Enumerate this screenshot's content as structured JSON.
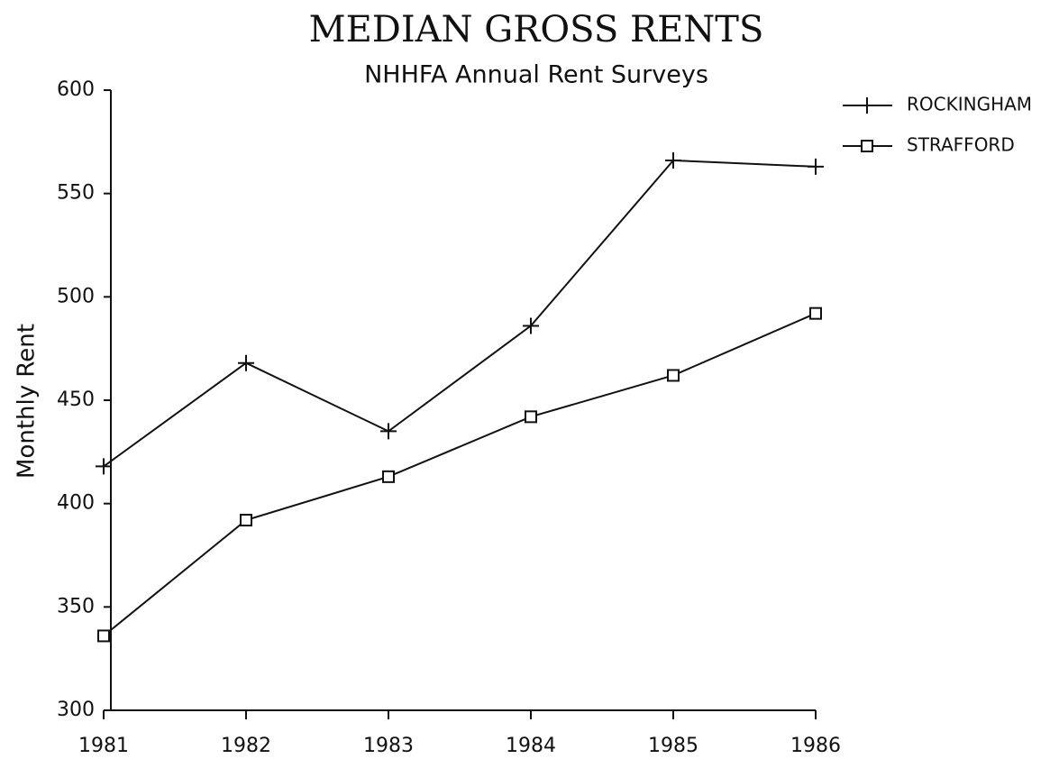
{
  "chart_data": {
    "type": "line",
    "title": "MEDIAN GROSS RENTS",
    "subtitle": "NHHFA Annual Rent Surveys",
    "ylabel": "Monthly Rent",
    "categories": [
      "1981",
      "1982",
      "1983",
      "1984",
      "1985",
      "1986"
    ],
    "series": [
      {
        "name": "ROCKINGHAM",
        "color": "#111111",
        "marker": "plus",
        "values": [
          418,
          468,
          435,
          486,
          566,
          563
        ]
      },
      {
        "name": "STRAFFORD",
        "color": "#111111",
        "marker": "square",
        "values": [
          336,
          392,
          413,
          442,
          462,
          492
        ]
      }
    ],
    "ylim": [
      300,
      600
    ],
    "yticks": [
      300,
      350,
      400,
      450,
      500,
      550,
      600
    ],
    "grid": false,
    "legend": "upper right"
  }
}
